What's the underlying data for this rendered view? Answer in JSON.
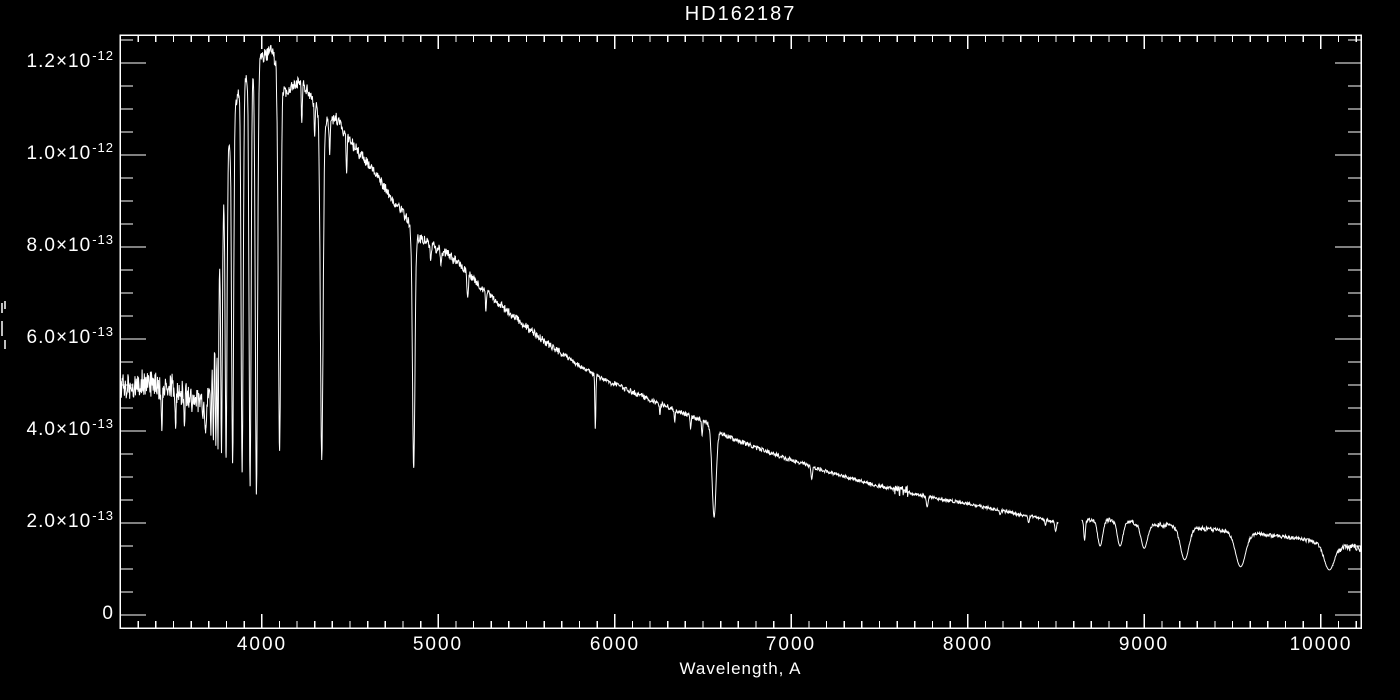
{
  "meta": {
    "background": "#000000",
    "foreground": "#ffffff"
  },
  "chart_data": {
    "type": "line",
    "title": "HD162187",
    "xlabel": "Wavelength, A",
    "ylabel": "",
    "legend": "none",
    "grid": false,
    "x_range": [
      3197,
      10228
    ],
    "y_range_flux_1e13": [
      -0.28,
      12.9
    ],
    "x_ticks": {
      "major_values": [
        4000,
        5000,
        6000,
        7000,
        8000,
        9000,
        10000
      ],
      "labels": [
        "4000",
        "5000",
        "6000",
        "7000",
        "8000",
        "9000",
        "10000"
      ],
      "minor_step": 100
    },
    "y_ticks": {
      "unit_scale": "1e-13",
      "major": [
        {
          "value": 0,
          "label_main": "0",
          "label_sup": ""
        },
        {
          "value": 2,
          "label_main": "2.0×10",
          "label_sup": "-13"
        },
        {
          "value": 4,
          "label_main": "4.0×10",
          "label_sup": "-13"
        },
        {
          "value": 6,
          "label_main": "6.0×10",
          "label_sup": "-13"
        },
        {
          "value": 8,
          "label_main": "8.0×10",
          "label_sup": "-13"
        },
        {
          "value": 10,
          "label_main": "1.0×10",
          "label_sup": "-12"
        },
        {
          "value": 12,
          "label_main": "1.2×10",
          "label_sup": "-12"
        }
      ],
      "minor_step": 0.5,
      "minor_max": 12.5
    },
    "series": {
      "name": "flux-spectrum",
      "flux_unit_scale": "1e-13",
      "continuum": [
        [
          3197,
          4.9
        ],
        [
          3240,
          5.0
        ],
        [
          3280,
          4.95
        ],
        [
          3320,
          5.05
        ],
        [
          3360,
          5.0
        ],
        [
          3400,
          5.05
        ],
        [
          3440,
          4.9
        ],
        [
          3480,
          5.0
        ],
        [
          3520,
          4.9
        ],
        [
          3560,
          4.8
        ],
        [
          3600,
          4.72
        ],
        [
          3640,
          4.6
        ],
        [
          3675,
          4.5
        ],
        [
          3695,
          4.7
        ],
        [
          3710,
          5.4
        ],
        [
          3725,
          6.2
        ],
        [
          3745,
          7.1
        ],
        [
          3765,
          8.1
        ],
        [
          3785,
          9.1
        ],
        [
          3805,
          9.9
        ],
        [
          3825,
          10.5
        ],
        [
          3850,
          11.1
        ],
        [
          3880,
          11.45
        ],
        [
          3910,
          11.7
        ],
        [
          3940,
          11.9
        ],
        [
          3970,
          12.0
        ],
        [
          4000,
          12.1
        ],
        [
          4030,
          12.2
        ],
        [
          4055,
          12.25
        ],
        [
          4080,
          12.0
        ],
        [
          4130,
          11.35
        ],
        [
          4175,
          11.5
        ],
        [
          4215,
          11.6
        ],
        [
          4260,
          11.4
        ],
        [
          4305,
          11.05
        ],
        [
          4375,
          10.7
        ],
        [
          4420,
          10.8
        ],
        [
          4470,
          10.5
        ],
        [
          4520,
          10.2
        ],
        [
          4570,
          9.95
        ],
        [
          4620,
          9.7
        ],
        [
          4670,
          9.45
        ],
        [
          4720,
          9.15
        ],
        [
          4770,
          8.9
        ],
        [
          4820,
          8.62
        ],
        [
          4845,
          8.5
        ],
        [
          4890,
          8.2
        ],
        [
          4940,
          8.1
        ],
        [
          5000,
          7.95
        ],
        [
          5060,
          7.82
        ],
        [
          5120,
          7.62
        ],
        [
          5180,
          7.4
        ],
        [
          5250,
          7.1
        ],
        [
          5320,
          6.85
        ],
        [
          5400,
          6.58
        ],
        [
          5480,
          6.32
        ],
        [
          5560,
          6.08
        ],
        [
          5640,
          5.85
        ],
        [
          5720,
          5.62
        ],
        [
          5800,
          5.42
        ],
        [
          5880,
          5.25
        ],
        [
          5960,
          5.08
        ],
        [
          6040,
          4.95
        ],
        [
          6120,
          4.82
        ],
        [
          6200,
          4.68
        ],
        [
          6280,
          4.56
        ],
        [
          6360,
          4.43
        ],
        [
          6440,
          4.31
        ],
        [
          6520,
          4.19
        ],
        [
          6600,
          3.95
        ],
        [
          6680,
          3.82
        ],
        [
          6760,
          3.7
        ],
        [
          6840,
          3.58
        ],
        [
          6920,
          3.47
        ],
        [
          7000,
          3.37
        ],
        [
          7100,
          3.25
        ],
        [
          7200,
          3.12
        ],
        [
          7300,
          3.01
        ],
        [
          7400,
          2.9
        ],
        [
          7500,
          2.8
        ],
        [
          7600,
          2.72
        ],
        [
          7700,
          2.63
        ],
        [
          7800,
          2.55
        ],
        [
          7900,
          2.48
        ],
        [
          8000,
          2.42
        ],
        [
          8100,
          2.34
        ],
        [
          8200,
          2.26
        ],
        [
          8300,
          2.18
        ],
        [
          8400,
          2.11
        ],
        [
          8512,
          2.0
        ],
        [
          8643,
          2.03
        ],
        [
          8700,
          2.08
        ],
        [
          8800,
          2.07
        ],
        [
          8900,
          2.02
        ],
        [
          9000,
          1.99
        ],
        [
          9100,
          1.96
        ],
        [
          9180,
          1.94
        ],
        [
          9280,
          1.9
        ],
        [
          9380,
          1.86
        ],
        [
          9480,
          1.82
        ],
        [
          9600,
          1.78
        ],
        [
          9700,
          1.74
        ],
        [
          9800,
          1.7
        ],
        [
          9900,
          1.64
        ],
        [
          9990,
          1.57
        ],
        [
          10060,
          1.5
        ],
        [
          10120,
          1.47
        ],
        [
          10180,
          1.46
        ],
        [
          10228,
          1.45
        ]
      ],
      "absorption_lines": [
        [
          3434,
          4.0,
          4
        ],
        [
          3512,
          4.05,
          4
        ],
        [
          3562,
          4.1,
          4
        ],
        [
          3682,
          3.95,
          5
        ],
        [
          3712,
          3.9,
          5
        ],
        [
          3726,
          3.8,
          5
        ],
        [
          3740,
          3.68,
          5
        ],
        [
          3752,
          3.6,
          5
        ],
        [
          3772,
          3.52,
          6
        ],
        [
          3798,
          3.42,
          7
        ],
        [
          3835,
          3.3,
          8
        ],
        [
          3889,
          3.1,
          8
        ],
        [
          3934,
          2.8,
          8
        ],
        [
          3970,
          2.62,
          9
        ],
        [
          4101,
          3.57,
          10
        ],
        [
          4227,
          10.7,
          4
        ],
        [
          4300,
          10.4,
          4
        ],
        [
          4340,
          3.37,
          11
        ],
        [
          4385,
          10.0,
          4
        ],
        [
          4481,
          9.6,
          4
        ],
        [
          4861,
          3.2,
          10
        ],
        [
          4957,
          7.7,
          4
        ],
        [
          5015,
          7.6,
          4
        ],
        [
          5167,
          6.9,
          6
        ],
        [
          5270,
          6.6,
          4
        ],
        [
          5890,
          4.05,
          4
        ],
        [
          6256,
          4.35,
          4
        ],
        [
          6340,
          4.2,
          4
        ],
        [
          6430,
          4.05,
          4
        ],
        [
          6495,
          3.9,
          4
        ],
        [
          6563,
          2.13,
          16
        ],
        [
          7116,
          2.95,
          6
        ],
        [
          7770,
          2.35,
          7
        ],
        [
          8183,
          2.18,
          5
        ],
        [
          8345,
          2.0,
          5
        ],
        [
          8440,
          1.95,
          5
        ],
        [
          8498,
          1.82,
          6
        ],
        [
          8662,
          1.62,
          6
        ],
        [
          8750,
          1.5,
          20
        ],
        [
          8863,
          1.5,
          22
        ],
        [
          9000,
          1.45,
          26
        ],
        [
          9229,
          1.2,
          34
        ],
        [
          9546,
          1.05,
          40
        ],
        [
          10049,
          0.98,
          40
        ]
      ],
      "noise_regions": [
        [
          3197,
          3695,
          0.3
        ],
        [
          3695,
          4120,
          0.15
        ],
        [
          4120,
          4600,
          0.13
        ],
        [
          4600,
          5100,
          0.11
        ],
        [
          5100,
          5700,
          0.09
        ],
        [
          5700,
          6300,
          0.06
        ],
        [
          6300,
          7000,
          0.05
        ],
        [
          7000,
          7585,
          0.04
        ],
        [
          7585,
          7660,
          0.13
        ],
        [
          7660,
          8512,
          0.035
        ],
        [
          8643,
          9400,
          0.05
        ],
        [
          9400,
          10000,
          0.04
        ],
        [
          10000,
          10228,
          0.08
        ]
      ],
      "gaps": [
        [
          8512,
          8643
        ]
      ]
    }
  }
}
